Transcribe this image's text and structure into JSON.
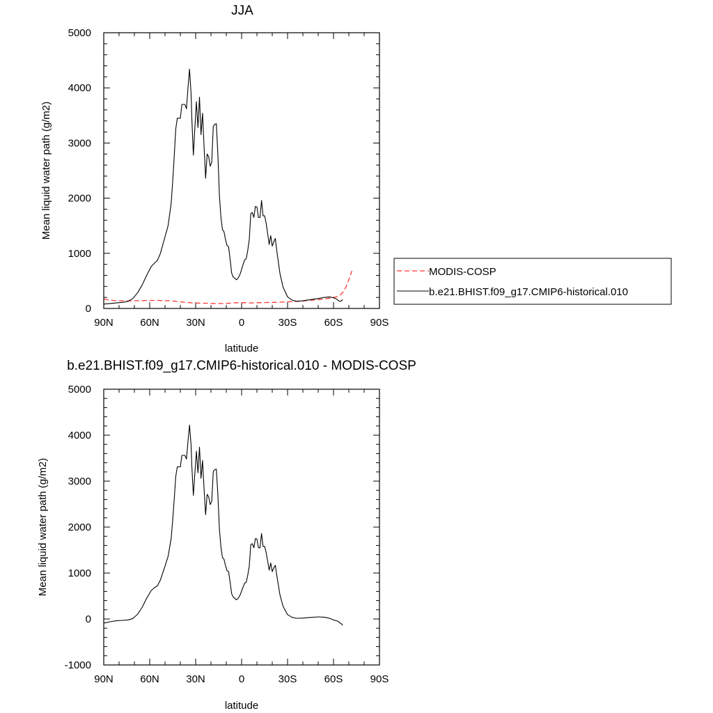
{
  "chart_data": [
    {
      "type": "line",
      "title": "JJA",
      "xlabel": "latitude",
      "ylabel": "Mean liquid water path (g/m2)",
      "xlim": [
        90,
        -90
      ],
      "ylim": [
        0,
        5000
      ],
      "x_ticks": [
        {
          "value": 90,
          "label": "90N"
        },
        {
          "value": 60,
          "label": "60N"
        },
        {
          "value": 30,
          "label": "30N"
        },
        {
          "value": 0,
          "label": "0"
        },
        {
          "value": -30,
          "label": "30S"
        },
        {
          "value": -60,
          "label": "60S"
        },
        {
          "value": -90,
          "label": "90S"
        }
      ],
      "y_ticks": [
        {
          "value": 0,
          "label": "0"
        },
        {
          "value": 1000,
          "label": "1000"
        },
        {
          "value": 2000,
          "label": "2000"
        },
        {
          "value": 3000,
          "label": "3000"
        },
        {
          "value": 4000,
          "label": "4000"
        },
        {
          "value": 5000,
          "label": "5000"
        }
      ],
      "legend": {
        "placement": "right",
        "entries": [
          {
            "label": "MODIS-COSP",
            "color": "#ff3333",
            "dash": "dashed"
          },
          {
            "label": "b.e21.BHIST.f09_g17.CMIP6-historical.010",
            "color": "#000000",
            "dash": "solid"
          }
        ]
      },
      "series": [
        {
          "name": "MODIS-COSP",
          "color": "#ff3333",
          "style": "dashed",
          "x": [
            90,
            86,
            82,
            78,
            74,
            70,
            66,
            62,
            58,
            54,
            50,
            46,
            42,
            38,
            34,
            30,
            26,
            22,
            18,
            14,
            10,
            6,
            2,
            -2,
            -6,
            -10,
            -14,
            -18,
            -22,
            -26,
            -30,
            -34,
            -38,
            -42,
            -46,
            -50,
            -54,
            -58,
            -60,
            -62,
            -64,
            -66,
            -68,
            -70,
            -72
          ],
          "y": [
            170,
            150,
            140,
            140,
            135,
            140,
            140,
            145,
            145,
            145,
            140,
            140,
            125,
            115,
            105,
            100,
            95,
            95,
            90,
            90,
            90,
            100,
            105,
            105,
            100,
            105,
            105,
            110,
            110,
            115,
            120,
            125,
            130,
            140,
            150,
            160,
            170,
            190,
            200,
            210,
            230,
            290,
            380,
            520,
            680
          ]
        },
        {
          "name": "b.e21.BHIST.f09_g17.CMIP6-historical.010",
          "color": "#000000",
          "style": "solid",
          "x": [
            90,
            86,
            82,
            78,
            74,
            71,
            68,
            65,
            62,
            59,
            57,
            55,
            53,
            50,
            48,
            46,
            45,
            44,
            43,
            42,
            41,
            40,
            39,
            38,
            37,
            36,
            35,
            34,
            33,
            32.5,
            31.5,
            30.5,
            29.5,
            28.5,
            27.5,
            26.5,
            25.5,
            24.5,
            23.5,
            22.5,
            21.5,
            20.5,
            19.5,
            18.5,
            17.5,
            16.5,
            15.5,
            14.5,
            13.5,
            12.5,
            11.5,
            10.5,
            9.5,
            8.5,
            7.5,
            6.5,
            5.5,
            4.5,
            3.5,
            2.5,
            1,
            -1,
            -2,
            -3,
            -4,
            -5,
            -6,
            -7,
            -8,
            -9,
            -10,
            -11,
            -12,
            -13,
            -14,
            -15,
            -16,
            -17,
            -18,
            -19,
            -20,
            -21,
            -22,
            -23,
            -24,
            -25,
            -27,
            -30,
            -33,
            -36,
            -40,
            -45,
            -50,
            -54,
            -57,
            -60,
            -62,
            -63,
            -64,
            -65,
            -66
          ],
          "y": [
            80,
            90,
            100,
            110,
            130,
            180,
            280,
            420,
            600,
            760,
            820,
            870,
            1000,
            1300,
            1500,
            1900,
            2300,
            2750,
            3250,
            3450,
            3450,
            3450,
            3700,
            3700,
            3700,
            3620,
            4000,
            4340,
            3900,
            3450,
            2780,
            3280,
            3750,
            3280,
            3830,
            3150,
            3540,
            2930,
            2360,
            2800,
            2750,
            2580,
            2650,
            3300,
            3340,
            3350,
            2800,
            2050,
            1650,
            1430,
            1390,
            1250,
            1140,
            1120,
            890,
            640,
            570,
            550,
            520,
            540,
            620,
            800,
            880,
            900,
            1050,
            1250,
            1720,
            1740,
            1650,
            1850,
            1840,
            1650,
            1650,
            1960,
            1680,
            1680,
            1550,
            1360,
            1160,
            1320,
            1130,
            1210,
            1270,
            1040,
            840,
            640,
            390,
            210,
            150,
            130,
            140,
            160,
            180,
            200,
            210,
            195,
            170,
            145,
            130,
            135,
            160
          ]
        }
      ]
    },
    {
      "type": "line",
      "title": "b.e21.BHIST.f09_g17.CMIP6-historical.010 - MODIS-COSP",
      "xlabel": "latitude",
      "ylabel": "Mean liquid water path (g/m2)",
      "xlim": [
        90,
        -90
      ],
      "ylim": [
        -1000,
        5000
      ],
      "x_ticks": [
        {
          "value": 90,
          "label": "90N"
        },
        {
          "value": 60,
          "label": "60N"
        },
        {
          "value": 30,
          "label": "30N"
        },
        {
          "value": 0,
          "label": "0"
        },
        {
          "value": -30,
          "label": "30S"
        },
        {
          "value": -60,
          "label": "60S"
        },
        {
          "value": -90,
          "label": "90S"
        }
      ],
      "y_ticks": [
        {
          "value": -1000,
          "label": "-1000"
        },
        {
          "value": 0,
          "label": "0"
        },
        {
          "value": 1000,
          "label": "1000"
        },
        {
          "value": 2000,
          "label": "2000"
        },
        {
          "value": 3000,
          "label": "3000"
        },
        {
          "value": 4000,
          "label": "4000"
        },
        {
          "value": 5000,
          "label": "5000"
        }
      ],
      "series": [
        {
          "color": "#000000",
          "style": "solid",
          "x": [
            90,
            86,
            82,
            78,
            74,
            71,
            68,
            65,
            62,
            59,
            57,
            55,
            53,
            50,
            48,
            46,
            45,
            44,
            43,
            42,
            41,
            40,
            39,
            38,
            37,
            36,
            35,
            34,
            33,
            32.5,
            31.5,
            30.5,
            29.5,
            28.5,
            27.5,
            26.5,
            25.5,
            24.5,
            23.5,
            22.5,
            21.5,
            20.5,
            19.5,
            18.5,
            17.5,
            16.5,
            15.5,
            14.5,
            13.5,
            12.5,
            11.5,
            10.5,
            9.5,
            8.5,
            7.5,
            6.5,
            5.5,
            4.5,
            3.5,
            2.5,
            1,
            -1,
            -2,
            -3,
            -4,
            -5,
            -6,
            -7,
            -8,
            -9,
            -10,
            -11,
            -12,
            -13,
            -14,
            -15,
            -16,
            -17,
            -18,
            -19,
            -20,
            -21,
            -22,
            -23,
            -24,
            -25,
            -27,
            -30,
            -33,
            -36,
            -40,
            -45,
            -50,
            -54,
            -57,
            -60,
            -62,
            -63,
            -64,
            -65,
            -66
          ],
          "y": [
            -90,
            -60,
            -40,
            -30,
            -20,
            10,
            100,
            250,
            450,
            620,
            680,
            720,
            850,
            1150,
            1360,
            1750,
            2150,
            2600,
            3100,
            3310,
            3310,
            3310,
            3560,
            3560,
            3560,
            3480,
            3870,
            4220,
            3790,
            3330,
            2690,
            3180,
            3650,
            3180,
            3740,
            3060,
            3450,
            2830,
            2270,
            2710,
            2660,
            2490,
            2560,
            3210,
            3250,
            3260,
            2710,
            1960,
            1560,
            1340,
            1300,
            1160,
            1050,
            1030,
            800,
            550,
            480,
            450,
            420,
            440,
            520,
            700,
            780,
            800,
            950,
            1150,
            1620,
            1640,
            1550,
            1750,
            1740,
            1550,
            1550,
            1860,
            1580,
            1580,
            1450,
            1260,
            1060,
            1220,
            1030,
            1110,
            1170,
            940,
            740,
            530,
            280,
            95,
            35,
            15,
            20,
            35,
            45,
            40,
            20,
            -20,
            -40,
            -50,
            -80,
            -100,
            -140
          ]
        }
      ]
    }
  ]
}
